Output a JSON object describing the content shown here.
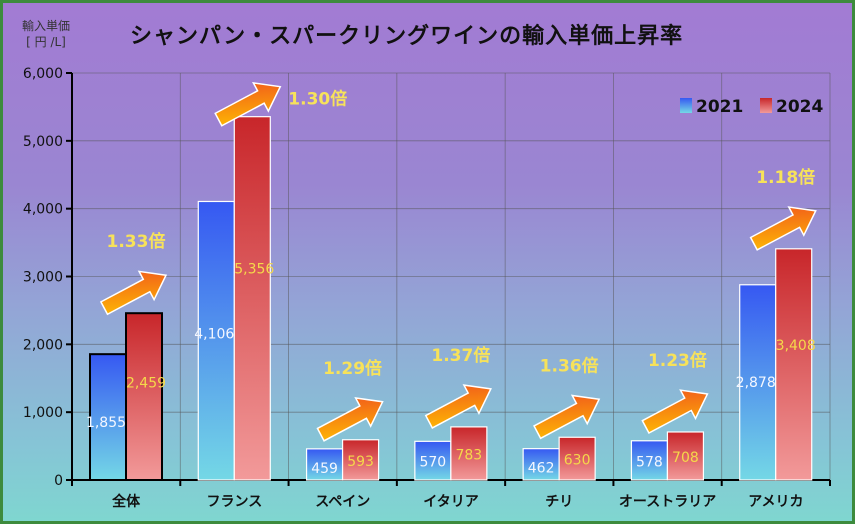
{
  "chart_data": {
    "type": "bar",
    "title": "シャンパン・スパークリングワインの輸入単価上昇率",
    "ylabel_line1": "輸入単価",
    "ylabel_line2": "[ 円 /L]",
    "ylim": [
      0,
      6000
    ],
    "yticks": [
      "0",
      "1,000",
      "2,000",
      "3,000",
      "4,000",
      "5,000",
      "6,000"
    ],
    "categories": [
      "全体",
      "フランス",
      "スペイン",
      "イタリア",
      "チリ",
      "オーストラリア",
      "アメリカ"
    ],
    "series": [
      {
        "name": "2021",
        "values": [
          1855,
          4106,
          459,
          570,
          462,
          578,
          2878
        ],
        "labels": [
          "1,855",
          "4,106",
          "459",
          "570",
          "462",
          "578",
          "2,878"
        ],
        "color": "#3a63f0"
      },
      {
        "name": "2024",
        "values": [
          2459,
          5356,
          593,
          783,
          630,
          708,
          3408
        ],
        "labels": [
          "2,459",
          "5,356",
          "593",
          "783",
          "630",
          "708",
          "3,408"
        ],
        "color": "#cc2a2a"
      }
    ],
    "ratios": [
      "1.33倍",
      "1.30倍",
      "1.29倍",
      "1.37倍",
      "1.36倍",
      "1.23倍",
      "1.18倍"
    ],
    "legend": "top-right",
    "grid": true
  }
}
